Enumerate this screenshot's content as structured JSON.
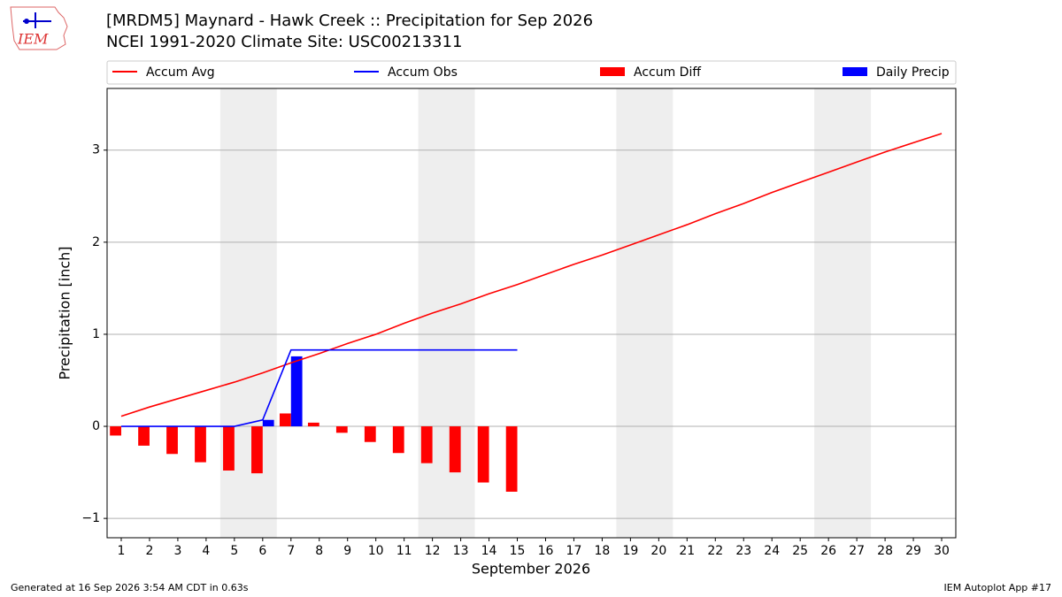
{
  "chart_data": {
    "type": "combo",
    "title": "[MRDM5] Maynard - Hawk Creek :: Precipitation for Sep 2026",
    "subtitle": "NCEI 1991-2020 Climate Site: USC00213311",
    "xlabel": "September 2026",
    "ylabel": "Precipitation [inch]",
    "logo": "IEM",
    "footer_left": "Generated at 16 Sep 2026 3:54 AM CDT in 0.63s",
    "footer_right": "IEM Autoplot App #17",
    "x": [
      1,
      2,
      3,
      4,
      5,
      6,
      7,
      8,
      9,
      10,
      11,
      12,
      13,
      14,
      15,
      16,
      17,
      18,
      19,
      20,
      21,
      22,
      23,
      24,
      25,
      26,
      27,
      28,
      29,
      30
    ],
    "xlim": [
      0.5,
      30.5
    ],
    "xticks": [
      1,
      2,
      3,
      4,
      5,
      6,
      7,
      8,
      9,
      10,
      11,
      12,
      13,
      14,
      15,
      16,
      17,
      18,
      19,
      20,
      21,
      22,
      23,
      24,
      25,
      26,
      27,
      28,
      29,
      30
    ],
    "ylim": [
      -1.21,
      3.67
    ],
    "yticks": [
      {
        "value": -1,
        "label": "−1"
      },
      0,
      1,
      2,
      3
    ],
    "grid": true,
    "weekend_spans": [
      [
        4.5,
        6.5
      ],
      [
        11.5,
        13.5
      ],
      [
        18.5,
        20.5
      ],
      [
        25.5,
        27.5
      ]
    ],
    "weekend_color": "#eeeeee",
    "series": [
      {
        "name": "Accum Avg",
        "type": "line",
        "color": "#ff0000",
        "values": [
          0.11,
          0.21,
          0.3,
          0.39,
          0.48,
          0.58,
          0.69,
          0.79,
          0.9,
          1.0,
          1.12,
          1.23,
          1.33,
          1.44,
          1.54,
          1.65,
          1.76,
          1.86,
          1.97,
          2.08,
          2.19,
          2.31,
          2.42,
          2.54,
          2.65,
          2.76,
          2.87,
          2.98,
          3.08,
          3.18
        ]
      },
      {
        "name": "Accum Obs",
        "type": "line",
        "color": "#0000ff",
        "values": [
          0,
          0,
          0,
          0,
          0,
          0.07,
          0.83,
          0.83,
          0.83,
          0.83,
          0.83,
          0.83,
          0.83,
          0.83,
          0.83,
          null,
          null,
          null,
          null,
          null,
          null,
          null,
          null,
          null,
          null,
          null,
          null,
          null,
          null,
          null
        ]
      },
      {
        "name": "Accum Diff",
        "type": "bar",
        "offset": -0.2,
        "width": 0.4,
        "color": "#ff0000",
        "values": [
          -0.1,
          -0.21,
          -0.3,
          -0.39,
          -0.48,
          -0.51,
          0.14,
          0.04,
          -0.07,
          -0.17,
          -0.29,
          -0.4,
          -0.5,
          -0.61,
          -0.71,
          null,
          null,
          null,
          null,
          null,
          null,
          null,
          null,
          null,
          null,
          null,
          null,
          null,
          null,
          null
        ]
      },
      {
        "name": "Daily Precip",
        "type": "bar",
        "offset": 0.2,
        "width": 0.4,
        "color": "#0000ff",
        "values": [
          0,
          0,
          0,
          0,
          0,
          0.07,
          0.76,
          0,
          0,
          0,
          0,
          0,
          0,
          0,
          0,
          null,
          null,
          null,
          null,
          null,
          null,
          null,
          null,
          null,
          null,
          null,
          null,
          null,
          null,
          null
        ]
      }
    ]
  }
}
